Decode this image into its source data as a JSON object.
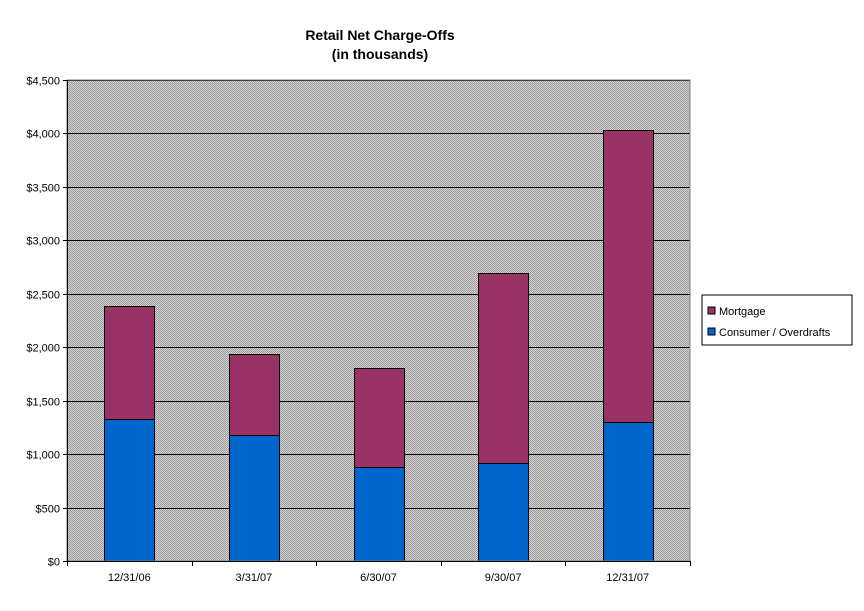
{
  "chart_data": {
    "type": "bar",
    "stacked": true,
    "title": "Retail Net Charge-Offs",
    "subtitle": "(in thousands)",
    "categories": [
      "12/31/06",
      "3/31/07",
      "6/30/07",
      "9/30/07",
      "12/31/07"
    ],
    "series": [
      {
        "name": "Consumer / Overdrafts",
        "color": "#0066CC",
        "values": [
          1330,
          1180,
          880,
          920,
          1300
        ]
      },
      {
        "name": "Mortgage",
        "color": "#993366",
        "values": [
          1060,
          760,
          930,
          1770,
          2730
        ]
      }
    ],
    "ylim": [
      0,
      4500
    ],
    "yticks": [
      0,
      500,
      1000,
      1500,
      2000,
      2500,
      3000,
      3500,
      4000,
      4500
    ],
    "ytick_labels": [
      "$0",
      "$500",
      "$1,000",
      "$1,500",
      "$2,000",
      "$2,500",
      "$3,000",
      "$3,500",
      "$4,000",
      "$4,500"
    ],
    "xlabel": "",
    "ylabel": "",
    "grid": true,
    "legend": {
      "placement": "right",
      "order": [
        "Mortgage",
        "Consumer / Overdrafts"
      ]
    },
    "plot_background": "#C0C0C0"
  }
}
